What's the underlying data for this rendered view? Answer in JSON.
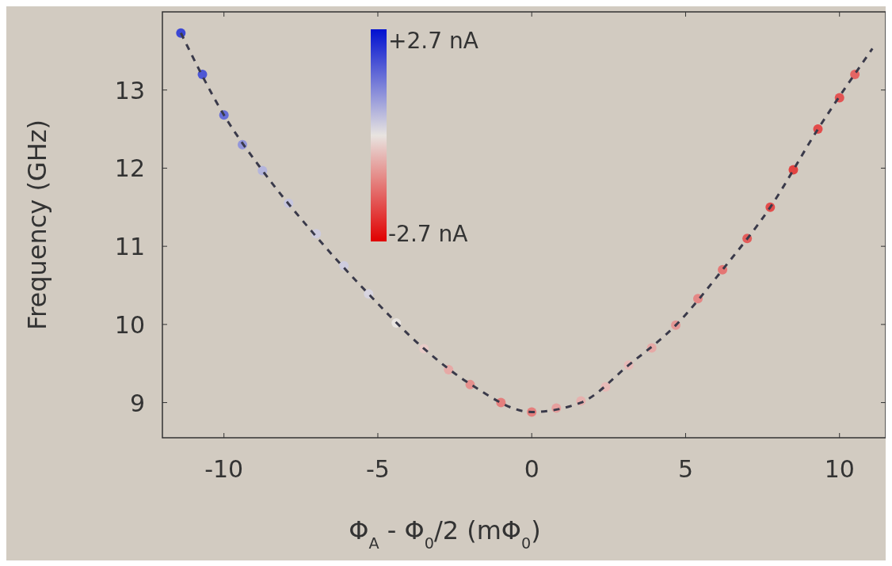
{
  "chart_data": {
    "type": "scatter",
    "xlabel": "Φ$_{A}$ - Φ$_{0}$/2 (mΦ$_{0}$)",
    "ylabel": "Frequency (GHz)",
    "xlim": [
      -12,
      11.5
    ],
    "ylim": [
      8.55,
      14
    ],
    "xticks": [
      -10,
      -5,
      0,
      5,
      10
    ],
    "yticks": [
      9,
      10,
      11,
      12,
      13
    ],
    "annotations": [
      "+2.7 nA",
      "-2.7 nA"
    ],
    "series": [
      {
        "marker": "circle",
        "x": [
          -11.4,
          -10.7,
          -10,
          -9.4,
          -8.75,
          -7.9,
          -7,
          -6.1,
          -5.3,
          -4.4,
          -3.5,
          -2.7,
          -2,
          -1,
          0,
          0.8,
          1.6,
          2.4,
          3.15,
          3.9,
          4.68,
          5.4,
          6.2,
          7,
          7.75,
          8.5,
          9.3,
          10,
          10.5
        ],
        "values": [
          13.73,
          13.2,
          12.68,
          12.3,
          11.97,
          11.55,
          11.16,
          10.75,
          10.39,
          10.02,
          9.69,
          9.42,
          9.23,
          9.0,
          8.88,
          8.93,
          9.02,
          9.2,
          9.48,
          9.7,
          9.99,
          10.33,
          10.7,
          11.1,
          11.5,
          11.98,
          12.5,
          12.9,
          13.2
        ],
        "colors": [
          "#3c47d4",
          "#4d57d5",
          "#676ed7",
          "#9296da",
          "#b4b5dc",
          "#c6c5de",
          "#ceccde",
          "#ceccde",
          "#d7d4df",
          "#e8e4e0",
          "#e7cbc7",
          "#e6a9a6",
          "#e5908d",
          "#e47f7d",
          "#e47f7d",
          "#e6a09e",
          "#e6b1ae",
          "#e7bab7",
          "#e7bab7",
          "#e6a9a6",
          "#e59895",
          "#e58785",
          "#e47674",
          "#e35d5b",
          "#e34c4b",
          "#e24442",
          "#e34c4b",
          "#e35453",
          "#e46564"
        ]
      },
      {
        "type": "line",
        "color": "#3a3a4a",
        "line_style": "dashed",
        "x": [
          -11.4,
          -10,
          -8.75,
          -7.08,
          -5.3,
          -3.5,
          -1.97,
          0,
          1.6,
          3.15,
          4.68,
          6.2,
          7.75,
          9.3,
          11.07
        ],
        "values": [
          13.73,
          12.68,
          11.97,
          11.16,
          10.39,
          9.69,
          9.23,
          8.88,
          9.0,
          9.48,
          9.99,
          10.7,
          11.5,
          12.5,
          13.53
        ]
      }
    ]
  }
}
